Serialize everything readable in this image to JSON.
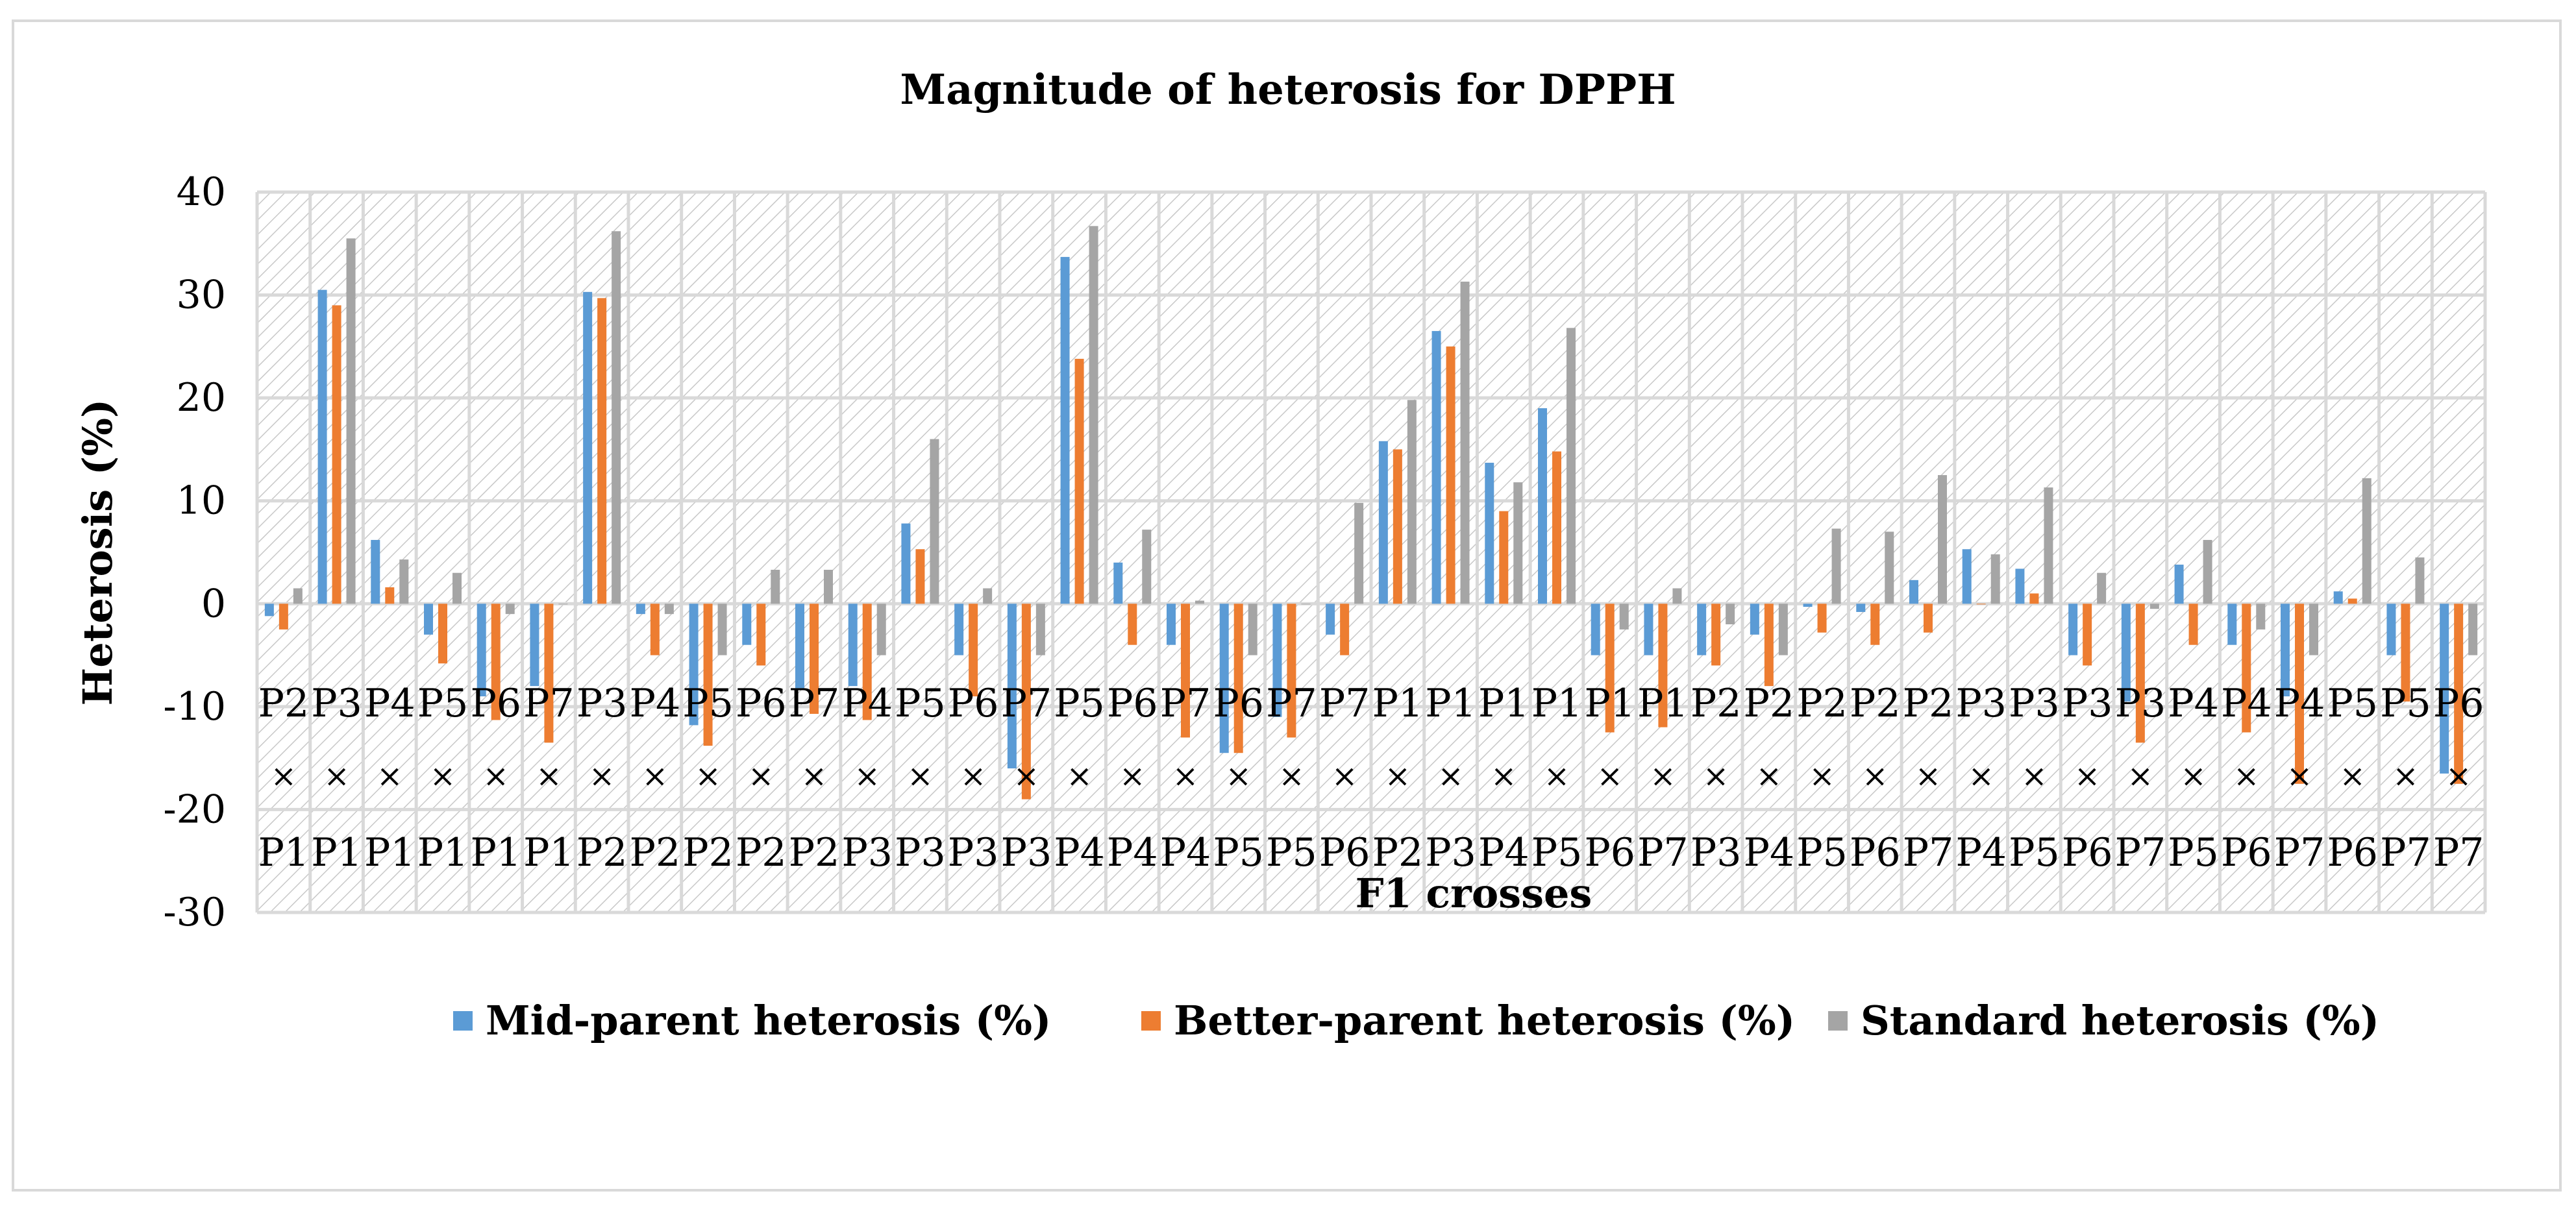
{
  "chart_data": {
    "type": "bar",
    "title": "Magnitude of heterosis for DPPH",
    "xlabel": "F1 crosses",
    "ylabel": "Heterosis (%)",
    "ylim": [
      -30,
      40
    ],
    "yticks": [
      "40",
      "30",
      "20",
      "10",
      "0",
      "-10",
      "-20",
      "-30"
    ],
    "grid": true,
    "legend_position": "bottom",
    "cross_symbol": "×",
    "categories_top": [
      "P2",
      "P3",
      "P4",
      "P5",
      "P6",
      "P7",
      "P3",
      "P4",
      "P5",
      "P6",
      "P7",
      "P4",
      "P5",
      "P6",
      "P7",
      "P5",
      "P6",
      "P7",
      "P6",
      "P7",
      "P7",
      "P1",
      "P1",
      "P1",
      "P1",
      "P1",
      "P1",
      "P2",
      "P2",
      "P2",
      "P2",
      "P2",
      "P3",
      "P3",
      "P3",
      "P3",
      "P4",
      "P4",
      "P4",
      "P5",
      "P5",
      "P6"
    ],
    "categories_bottom": [
      "P1",
      "P1",
      "P1",
      "P1",
      "P1",
      "P1",
      "P2",
      "P2",
      "P2",
      "P2",
      "P2",
      "P3",
      "P3",
      "P3",
      "P3",
      "P4",
      "P4",
      "P4",
      "P5",
      "P5",
      "P6",
      "P2",
      "P3",
      "P4",
      "P5",
      "P6",
      "P7",
      "P3",
      "P4",
      "P5",
      "P6",
      "P7",
      "P4",
      "P5",
      "P6",
      "P7",
      "P5",
      "P6",
      "P7",
      "P6",
      "P7",
      "P7"
    ],
    "series": [
      {
        "name": "Mid-parent heterosis (%)",
        "color": "#5b9bd5",
        "values": [
          -1.2,
          30.5,
          6.2,
          -3.0,
          -9.0,
          -8.0,
          30.3,
          -1.0,
          -11.8,
          -4.0,
          -8.2,
          -8.0,
          7.8,
          -5.0,
          -16.0,
          33.7,
          4.0,
          -4.0,
          -14.5,
          -11.0,
          -3.0,
          15.8,
          26.5,
          13.7,
          19.0,
          -5.0,
          -5.0,
          -5.0,
          -3.0,
          -0.3,
          -0.8,
          2.3,
          5.3,
          3.4,
          -5.0,
          -9.5,
          3.8,
          -4.0,
          -9.0,
          1.2,
          -5.0,
          -16.5
        ]
      },
      {
        "name": "Better-parent heterosis (%)",
        "color": "#ed7d31",
        "values": [
          -2.5,
          29.0,
          1.6,
          -5.8,
          -11.3,
          -13.5,
          29.7,
          -5.0,
          -13.8,
          -6.0,
          -10.7,
          -11.3,
          5.3,
          -9.0,
          -19.0,
          23.8,
          -4.0,
          -13.0,
          -14.5,
          -13.0,
          -5.0,
          15.0,
          25.0,
          9.0,
          14.8,
          -12.5,
          -12.0,
          -6.0,
          -8.0,
          -2.8,
          -4.0,
          -2.8,
          0.0,
          1.0,
          -6.0,
          -13.5,
          -4.0,
          -12.5,
          -17.5,
          0.5,
          -9.5,
          -17.5
        ]
      },
      {
        "name": "Standard heterosis (%)",
        "color": "#a5a5a5",
        "values": [
          1.5,
          35.5,
          4.3,
          3.0,
          -1.0,
          0.0,
          36.2,
          -1.0,
          -5.0,
          3.3,
          3.3,
          -5.0,
          16.0,
          1.5,
          -5.0,
          36.7,
          7.2,
          0.3,
          -5.0,
          0.0,
          9.8,
          19.8,
          31.3,
          11.8,
          26.8,
          -2.5,
          1.5,
          -2.0,
          -5.0,
          7.3,
          7.0,
          12.5,
          4.8,
          11.3,
          3.0,
          -0.5,
          6.2,
          -2.5,
          -5.0,
          12.2,
          4.5,
          -5.0
        ]
      }
    ]
  }
}
